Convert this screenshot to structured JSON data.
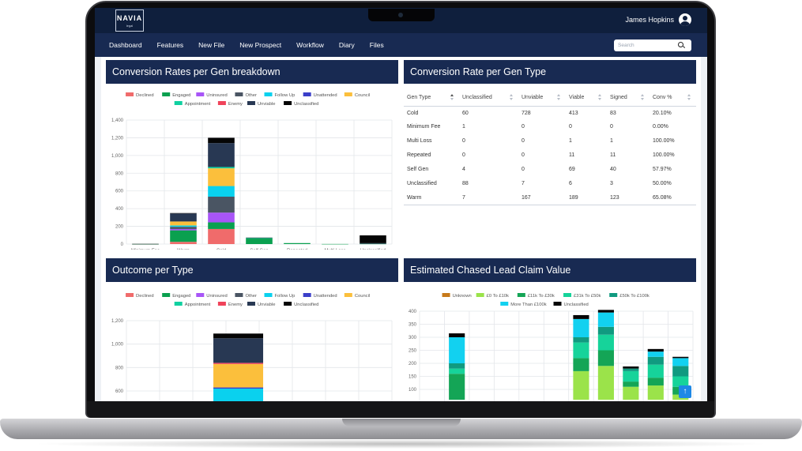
{
  "app": {
    "logo_text": "NAVIA",
    "logo_sub": "legal",
    "user_name": "James Hopkins"
  },
  "nav": {
    "items": [
      "Dashboard",
      "Features",
      "New File",
      "New Prospect",
      "Workflow",
      "Diary",
      "Files"
    ]
  },
  "search": {
    "placeholder": "Search"
  },
  "colors": {
    "Declined": "#f06b6b",
    "Engaged": "#0aa04f",
    "Uninsured": "#a855f7",
    "Other": "#4a5563",
    "Follow Up": "#0ad1ee",
    "Unattended": "#3b3fc9",
    "Council": "#fbbf3c",
    "Appointment": "#10d0a0",
    "Enemy": "#f0435a",
    "Unviable": "#283853",
    "Unclassified": "#050505",
    "Unknown": "#c77a1a",
    "£0 To £10k": "#9be34a",
    "£11k To £30k": "#14a556",
    "£31k To £50k": "#16d39a",
    "£50k To £100k": "#109a80",
    "More Than £100k": "#12d1f0"
  },
  "panels": {
    "conversion_breakdown": {
      "title": "Conversion Rates per Gen breakdown"
    },
    "conversion_type": {
      "title": "Conversion Rate per Gen Type"
    },
    "outcome_type": {
      "title": "Outcome per Type"
    },
    "claim_value": {
      "title": "Estimated Chased Lead Claim Value"
    }
  },
  "table": {
    "columns": [
      "Gen Type",
      "Unclassified",
      "Unviable",
      "Viable",
      "Signed",
      "Conv %"
    ],
    "rows": [
      [
        "Cold",
        "60",
        "728",
        "413",
        "83",
        "20.10%"
      ],
      [
        "Minimum Fee",
        "1",
        "0",
        "0",
        "0",
        "0.00%"
      ],
      [
        "Multi Loss",
        "0",
        "0",
        "1",
        "1",
        "100.00%"
      ],
      [
        "Repeated",
        "0",
        "0",
        "11",
        "11",
        "100.00%"
      ],
      [
        "Self Gen",
        "4",
        "0",
        "69",
        "40",
        "57.97%"
      ],
      [
        "Unclassified",
        "88",
        "7",
        "6",
        "3",
        "50.00%"
      ],
      [
        "Warm",
        "7",
        "167",
        "189",
        "123",
        "65.08%"
      ]
    ]
  },
  "chart_data": [
    {
      "type": "bar",
      "stacked": true,
      "legend_rows": [
        [
          "Declined",
          "Engaged",
          "Uninsured",
          "Other",
          "Follow Up",
          "Unattended",
          "Council"
        ],
        [
          "Appointment",
          "Enemy",
          "Unviable",
          "Unclassified"
        ]
      ],
      "categories": [
        "Minimum Fee",
        "Warm",
        "Cold",
        "Self Gen",
        "Repeated",
        "Multi Loss",
        "Unclassified"
      ],
      "ylim": [
        0,
        1400
      ],
      "yticks": [
        0,
        200,
        400,
        600,
        800,
        1000,
        1200,
        1400
      ],
      "ytick_labels": [
        "0",
        "200",
        "400",
        "600",
        "800",
        "1,000",
        "1,200",
        "1,400"
      ],
      "series": [
        {
          "name": "Declined",
          "values": [
            0,
            25,
            170,
            0,
            0,
            0,
            0
          ]
        },
        {
          "name": "Engaged",
          "values": [
            1,
            130,
            75,
            62,
            11,
            1,
            3
          ]
        },
        {
          "name": "Uninsured",
          "values": [
            0,
            15,
            110,
            0,
            0,
            0,
            0
          ]
        },
        {
          "name": "Other",
          "values": [
            0,
            25,
            180,
            0,
            0,
            0,
            0
          ]
        },
        {
          "name": "Follow Up",
          "values": [
            0,
            15,
            120,
            0,
            0,
            0,
            0
          ]
        },
        {
          "name": "Unattended",
          "values": [
            0,
            0,
            0,
            0,
            0,
            0,
            0
          ]
        },
        {
          "name": "Council",
          "values": [
            0,
            45,
            200,
            0,
            0,
            0,
            0
          ]
        },
        {
          "name": "Appointment",
          "values": [
            0,
            0,
            15,
            7,
            0,
            0,
            0
          ]
        },
        {
          "name": "Enemy",
          "values": [
            0,
            0,
            0,
            0,
            0,
            0,
            0
          ]
        },
        {
          "name": "Unviable",
          "values": [
            0,
            90,
            270,
            0,
            0,
            0,
            7
          ]
        },
        {
          "name": "Unclassified",
          "values": [
            1,
            5,
            60,
            4,
            0,
            0,
            88
          ]
        }
      ]
    },
    {
      "type": "bar",
      "stacked": true,
      "legend_rows": [
        [
          "Declined",
          "Engaged",
          "Uninsured",
          "Other",
          "Follow Up",
          "Unattended",
          "Council"
        ],
        [
          "Appointment",
          "Enemy",
          "Unviable",
          "Unclassified"
        ]
      ],
      "ylim": [
        0,
        1200
      ],
      "yticks": [
        400,
        600,
        800,
        1000,
        1200
      ],
      "ytick_labels": [
        "400",
        "600",
        "800",
        "1,000",
        "1,200"
      ],
      "bars": [
        {
          "segments": [
            {
              "name": "Declined",
              "value": 360
            },
            {
              "name": "Enemy",
              "value": 10
            },
            {
              "name": "Unviable",
              "value": 85
            },
            {
              "name": "Unclassified",
              "value": 10
            }
          ]
        },
        {
          "segments": [
            {
              "name": "Declined",
              "value": 300
            },
            {
              "name": "Other",
              "value": 210
            },
            {
              "name": "Follow Up",
              "value": 110
            },
            {
              "name": "Unattended",
              "value": 10
            },
            {
              "name": "Council",
              "value": 200
            },
            {
              "name": "Enemy",
              "value": 10
            },
            {
              "name": "Unviable",
              "value": 210
            },
            {
              "name": "Unclassified",
              "value": 40
            }
          ]
        }
      ]
    },
    {
      "type": "bar",
      "stacked": true,
      "legend_rows": [
        [
          "Unknown",
          "£0 To £10k",
          "£11k To £30k",
          "£31k To £50k",
          "£50k To £100k"
        ],
        [
          "More Than £100k",
          "Unclassified"
        ]
      ],
      "ylim": [
        100,
        400
      ],
      "yticks": [
        100,
        150,
        200,
        250,
        300,
        350,
        400
      ],
      "ytick_labels": [
        "100",
        "150",
        "200",
        "250",
        "300",
        "350",
        "400"
      ],
      "bars": [
        {
          "segments": [
            {
              "name": "£0 To £10k",
              "value": 0
            },
            {
              "name": "£11k To £30k",
              "value": 100
            },
            {
              "name": "£31k To £50k",
              "value": 20
            },
            {
              "name": "£50k To £100k",
              "value": 20
            },
            {
              "name": "More Than £100k",
              "value": 100
            },
            {
              "name": "Unclassified",
              "value": 15
            }
          ]
        },
        {
          "segments": [
            {
              "name": "£0 To £10k",
              "value": 110
            },
            {
              "name": "£11k To £30k",
              "value": 50
            },
            {
              "name": "£31k To £50k",
              "value": 60
            },
            {
              "name": "£50k To £100k",
              "value": 20
            },
            {
              "name": "More Than £100k",
              "value": 70
            },
            {
              "name": "Unclassified",
              "value": 15
            }
          ]
        },
        {
          "segments": [
            {
              "name": "£0 To £10k",
              "value": 130
            },
            {
              "name": "£11k To £30k",
              "value": 60
            },
            {
              "name": "£31k To £50k",
              "value": 60
            },
            {
              "name": "£50k To £100k",
              "value": 30
            },
            {
              "name": "More Than £100k",
              "value": 55
            },
            {
              "name": "Unclassified",
              "value": 10
            }
          ]
        },
        {
          "segments": [
            {
              "name": "£0 To £10k",
              "value": 50
            },
            {
              "name": "£11k To £30k",
              "value": 20
            },
            {
              "name": "£31k To £50k",
              "value": 40
            },
            {
              "name": "£50k To £100k",
              "value": 10
            },
            {
              "name": "Unclassified",
              "value": 8
            }
          ]
        },
        {
          "segments": [
            {
              "name": "£0 To £10k",
              "value": 55
            },
            {
              "name": "£11k To £30k",
              "value": 30
            },
            {
              "name": "£31k To £50k",
              "value": 50
            },
            {
              "name": "£50k To £100k",
              "value": 30
            },
            {
              "name": "More Than £100k",
              "value": 20
            },
            {
              "name": "Unclassified",
              "value": 10
            }
          ]
        },
        {
          "segments": [
            {
              "name": "£0 To £10k",
              "value": 20
            },
            {
              "name": "£11k To £30k",
              "value": 30
            },
            {
              "name": "£31k To £50k",
              "value": 40
            },
            {
              "name": "£50k To £100k",
              "value": 40
            },
            {
              "name": "More Than £100k",
              "value": 30
            },
            {
              "name": "Unclassified",
              "value": 5
            }
          ]
        }
      ]
    }
  ]
}
